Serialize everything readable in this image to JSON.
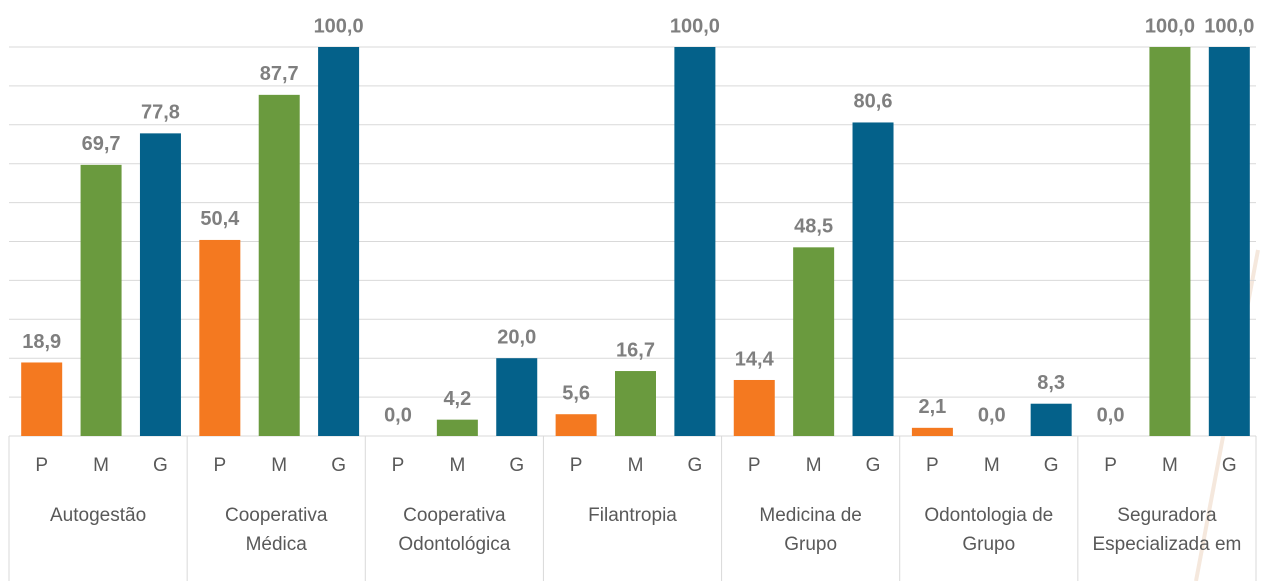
{
  "chart_data": {
    "type": "bar",
    "categories": [
      [
        "Autogestão"
      ],
      [
        "Cooperativa",
        "Médica"
      ],
      [
        "Cooperativa",
        "Odontológica"
      ],
      [
        "Filantropia"
      ],
      [
        "Medicina de",
        "Grupo"
      ],
      [
        "Odontologia de",
        "Grupo"
      ],
      [
        "Seguradora",
        "Especializada em"
      ]
    ],
    "series": [
      {
        "name": "P",
        "color": "#f47920",
        "values": [
          18.9,
          50.4,
          0.0,
          5.6,
          14.4,
          2.1,
          0.0
        ],
        "value_labels": [
          "18,9",
          "50,4",
          "0,0",
          "5,6",
          "14,4",
          "2,1",
          "0,0"
        ]
      },
      {
        "name": "M",
        "color": "#6a9a3e",
        "values": [
          69.7,
          87.7,
          4.2,
          16.7,
          48.5,
          0.0,
          100.0
        ],
        "value_labels": [
          "69,7",
          "87,7",
          "4,2",
          "16,7",
          "48,5",
          "0,0",
          "100,0"
        ]
      },
      {
        "name": "G",
        "color": "#04618a",
        "values": [
          77.8,
          100.0,
          20.0,
          100.0,
          80.6,
          8.3,
          100.0
        ],
        "value_labels": [
          "77,8",
          "100,0",
          "20,0",
          "100,0",
          "80,6",
          "8,3",
          "100,0"
        ]
      }
    ],
    "ylim": [
      0,
      100
    ],
    "yticks": [
      0,
      10,
      20,
      30,
      40,
      50,
      60,
      70,
      80,
      90,
      100
    ],
    "grid": true
  }
}
